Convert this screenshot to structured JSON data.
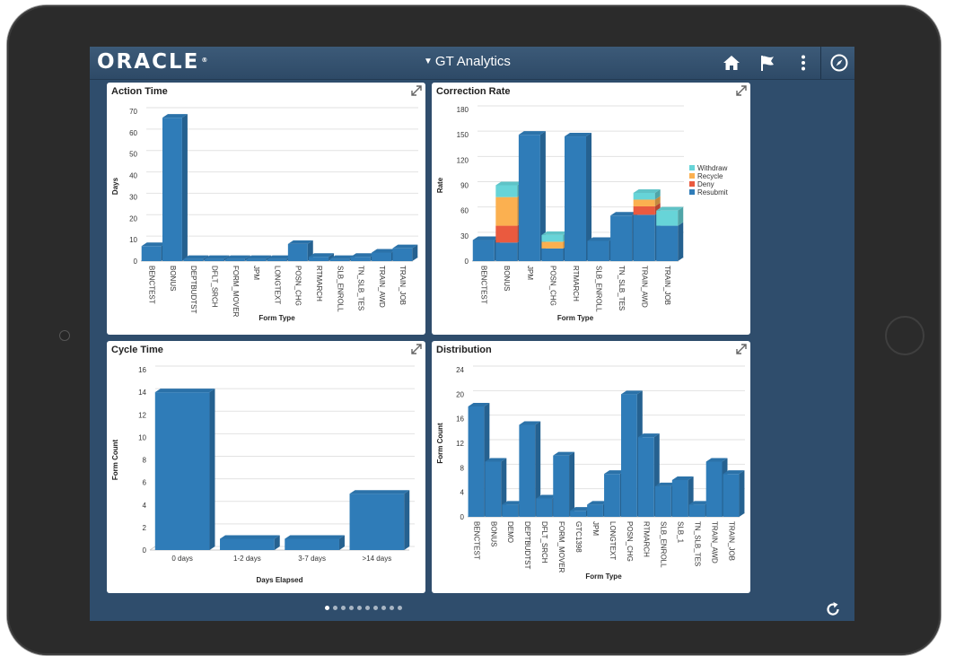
{
  "header": {
    "logo_text": "ORACLE",
    "logo_mark": "®",
    "app_title": "GT Analytics",
    "icons": [
      "home-icon",
      "flag-icon",
      "more-vertical-icon",
      "compass-icon"
    ]
  },
  "colors": {
    "bar": "#2f7cb8",
    "withdraw": "#67d4d8",
    "recycle": "#fbb050",
    "deny": "#ea5a3f",
    "resubmit": "#2f7cb8"
  },
  "pager": {
    "count": 10,
    "active": 0
  },
  "chart_data": [
    {
      "id": "action-time",
      "title": "Action Time",
      "type": "bar",
      "xlabel": "Form Type",
      "ylabel": "Days",
      "ylim": [
        0,
        70
      ],
      "yticks": [
        0,
        10,
        20,
        30,
        40,
        50,
        60,
        70
      ],
      "categories": [
        "BENCTEST",
        "BONUS",
        "DEPTBUDTST",
        "DFLT_SRCH",
        "FORM_MOVER",
        "JPM",
        "LONGTEXT",
        "POSN_CHG",
        "RTMARCH",
        "SLB_ENROLL",
        "TN_SLB_TES",
        "TRAIN_AWD",
        "TRAIN_JOB"
      ],
      "values": [
        7,
        67,
        1,
        1,
        1,
        1,
        1,
        8,
        2,
        1,
        2,
        4,
        6
      ]
    },
    {
      "id": "correction-rate",
      "title": "Correction Rate",
      "type": "bar",
      "stacked": true,
      "xlabel": "Form Type",
      "ylabel": "Rate",
      "ylim": [
        0,
        180
      ],
      "yticks": [
        0,
        30,
        60,
        90,
        120,
        150,
        180
      ],
      "categories": [
        "BENCTEST",
        "BONUS",
        "JPM",
        "POSN_CHG",
        "RTMARCH",
        "SLB_ENROLL",
        "TN_SLB_TES",
        "TRAIN_AWD",
        "TRAIN_JOB"
      ],
      "series": [
        {
          "name": "Resubmit",
          "values": [
            25,
            22,
            150,
            15,
            148,
            24,
            54,
            55,
            42
          ]
        },
        {
          "name": "Deny",
          "values": [
            0,
            20,
            0,
            0,
            0,
            0,
            0,
            10,
            0
          ]
        },
        {
          "name": "Recycle",
          "values": [
            0,
            34,
            0,
            8,
            0,
            0,
            0,
            8,
            0
          ]
        },
        {
          "name": "Withdraw",
          "values": [
            0,
            14,
            0,
            8,
            0,
            0,
            0,
            8,
            18
          ]
        }
      ],
      "legend": [
        "Withdraw",
        "Recycle",
        "Deny",
        "Resubmit"
      ],
      "legend_position": "right"
    },
    {
      "id": "cycle-time",
      "title": "Cycle Time",
      "type": "bar",
      "xlabel": "Days Elapsed",
      "ylabel": "Form Count",
      "ylim": [
        0,
        16
      ],
      "yticks": [
        0,
        2,
        4,
        6,
        8,
        10,
        12,
        14,
        16
      ],
      "categories": [
        "0 days",
        "1-2 days",
        "3-7 days",
        ">14 days"
      ],
      "values": [
        14,
        1,
        1,
        5
      ]
    },
    {
      "id": "distribution",
      "title": "Distribution",
      "type": "bar",
      "xlabel": "Form Type",
      "ylabel": "Form Count",
      "ylim": [
        0,
        24
      ],
      "yticks": [
        0,
        4,
        8,
        12,
        16,
        20,
        24
      ],
      "categories": [
        "BENCTEST",
        "BONUS",
        "DEMO",
        "DEPTBUDTST",
        "DFLT_SRCH",
        "FORM_MOVER",
        "GTC1398",
        "JPM",
        "LONGTEXT",
        "POSN_CHG",
        "RTMARCH",
        "SLB_ENROLL",
        "SLB_1",
        "TN_SLB_TES",
        "TRAIN_AWD",
        "TRAIN_JOB"
      ],
      "values": [
        18,
        9,
        2,
        15,
        3,
        10,
        1,
        2,
        7,
        20,
        13,
        5,
        6,
        2,
        9,
        7
      ]
    }
  ]
}
